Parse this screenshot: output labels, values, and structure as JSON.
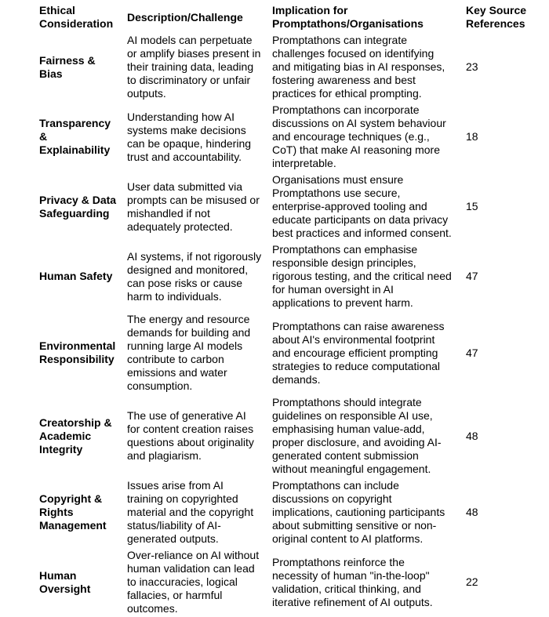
{
  "page": {
    "background_color": "#ffffff",
    "text_color": "#000000"
  },
  "table": {
    "columns": [
      {
        "id": "ethical-consideration",
        "label": "Ethical\nConsideration"
      },
      {
        "id": "description-challenge",
        "label": "Description/Challenge"
      },
      {
        "id": "implication",
        "label": "Implication for\nPromptathons/Organisations"
      },
      {
        "id": "key-source-references",
        "label": "Key Source\nReferences"
      }
    ],
    "rows": [
      {
        "consideration": "Fairness &\nBias",
        "description": "AI models can perpetuate\nor amplify biases present in\ntheir training data, leading\nto discriminatory or unfair\noutputs.",
        "implication": "Promptathons can integrate\nchallenges focused on identifying\nand mitigating bias in AI responses,\nfostering awareness and best\npractices for ethical prompting.",
        "references": "23"
      },
      {
        "consideration": "Transparency\n&\nExplainability",
        "description": "Understanding how AI\nsystems make decisions\ncan be opaque, hindering\ntrust and accountability.",
        "implication": "Promptathons can incorporate\ndiscussions on AI system behaviour\nand encourage techniques (e.g.,\nCoT) that make AI reasoning more\ninterpretable.",
        "references": "18"
      },
      {
        "consideration": "Privacy & Data\nSafeguarding",
        "description": "User data submitted via\nprompts can be misused or\nmishandled if not\nadequately protected.",
        "implication": "Organisations must ensure\nPromptathons use secure,\nenterprise-approved tooling and\neducate participants on data privacy\nbest practices and informed consent.",
        "references": "15"
      },
      {
        "consideration": "Human Safety",
        "description": "AI systems, if not rigorously\ndesigned and monitored,\ncan pose risks or cause\nharm to individuals.",
        "implication": "Promptathons can emphasise\nresponsible design principles,\nrigorous testing, and the critical need\nfor human oversight in AI\napplications to prevent harm.",
        "references": "47"
      },
      {
        "consideration": "Environmental\nResponsibility",
        "description": "The energy and resource\ndemands for building and\nrunning large AI models\ncontribute to carbon\nemissions and water\nconsumption.",
        "implication": "Promptathons can raise awareness\nabout AI's environmental footprint\nand encourage efficient prompting\nstrategies to reduce computational\ndemands.",
        "references": "47"
      },
      {
        "consideration": "Creatorship &\nAcademic\nIntegrity",
        "description": "The use of generative AI\nfor content creation raises\nquestions about originality\nand plagiarism.",
        "implication": "Promptathons should integrate\nguidelines on responsible AI use,\nemphasising human value-add,\nproper disclosure, and avoiding AI-\ngenerated content submission\nwithout meaningful engagement.",
        "references": "48"
      },
      {
        "consideration": "Copyright &\nRights\nManagement",
        "description": "Issues arise from AI\ntraining on copyrighted\nmaterial and the copyright\nstatus/liability of AI-\ngenerated outputs.",
        "implication": "Promptathons can include\ndiscussions on copyright\nimplications, cautioning participants\nabout submitting sensitive or non-\noriginal content to AI platforms.",
        "references": "48"
      },
      {
        "consideration": "Human\nOversight",
        "description": "Over-reliance on AI without\nhuman validation can lead\nto inaccuracies, logical\nfallacies, or harmful\noutcomes.",
        "implication": "Promptathons reinforce the\nnecessity of human \"in-the-loop\"\nvalidation, critical thinking, and\niterative refinement of AI outputs.",
        "references": "22"
      }
    ]
  }
}
